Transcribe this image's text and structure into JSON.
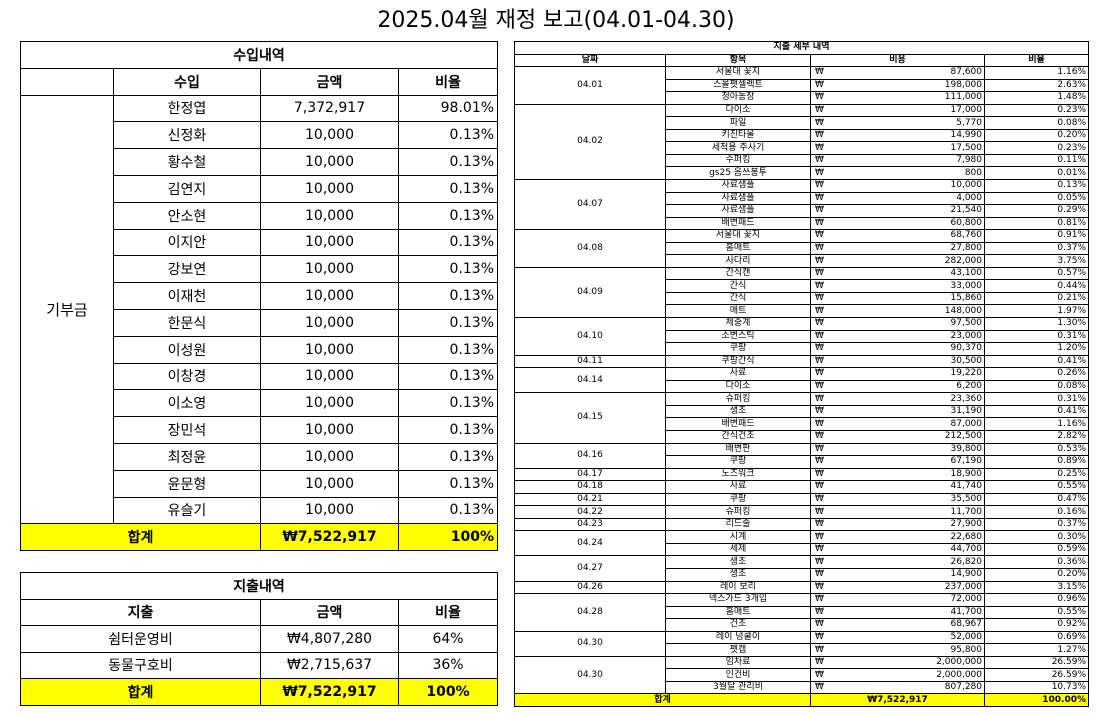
{
  "title": "2025.04월 재정 보고(04.01-04.30)",
  "income": {
    "section_title": "수입내역",
    "headers": [
      "수입",
      "금액",
      "비율"
    ],
    "category": "기부금",
    "rows": [
      {
        "name": "한정엽",
        "amount": "7,372,917",
        "ratio": "98.01%"
      },
      {
        "name": "신정화",
        "amount": "10,000",
        "ratio": "0.13%"
      },
      {
        "name": "황수철",
        "amount": "10,000",
        "ratio": "0.13%"
      },
      {
        "name": "김연지",
        "amount": "10,000",
        "ratio": "0.13%"
      },
      {
        "name": "안소현",
        "amount": "10,000",
        "ratio": "0.13%"
      },
      {
        "name": "이지안",
        "amount": "10,000",
        "ratio": "0.13%"
      },
      {
        "name": "강보연",
        "amount": "10,000",
        "ratio": "0.13%"
      },
      {
        "name": "이재천",
        "amount": "10,000",
        "ratio": "0.13%"
      },
      {
        "name": "한문식",
        "amount": "10,000",
        "ratio": "0.13%"
      },
      {
        "name": "이성원",
        "amount": "10,000",
        "ratio": "0.13%"
      },
      {
        "name": "이창경",
        "amount": "10,000",
        "ratio": "0.13%"
      },
      {
        "name": "이소영",
        "amount": "10,000",
        "ratio": "0.13%"
      },
      {
        "name": "장민석",
        "amount": "10,000",
        "ratio": "0.13%"
      },
      {
        "name": "최정윤",
        "amount": "10,000",
        "ratio": "0.13%"
      },
      {
        "name": "윤문형",
        "amount": "10,000",
        "ratio": "0.13%"
      },
      {
        "name": "유슬기",
        "amount": "10,000",
        "ratio": "0.13%"
      }
    ],
    "total_label": "합계",
    "total_amount": "₩7,522,917",
    "total_ratio": "100%"
  },
  "expense_summary": {
    "section_title": "지출내역",
    "headers": [
      "지출",
      "금액",
      "비율"
    ],
    "rows": [
      {
        "name": "쉼터운영비",
        "amount": "₩4,807,280",
        "ratio": "64%"
      },
      {
        "name": "동물구호비",
        "amount": "₩2,715,637",
        "ratio": "36%"
      }
    ],
    "total_label": "합계",
    "total_amount": "₩7,522,917",
    "total_ratio": "100%"
  },
  "detail": {
    "section_title": "지출 세부 내역",
    "headers": [
      "날짜",
      "항목",
      "비용",
      "비율"
    ],
    "currency": "₩",
    "groups": [
      {
        "date": "04.01",
        "items": [
          [
            "서울대 꽃지",
            "87,600",
            "1.16%"
          ],
          [
            "스몰팻셀렉트",
            "198,000",
            "2.63%"
          ],
          [
            "청아농장",
            "111,000",
            "1.48%"
          ]
        ]
      },
      {
        "date": "04.02",
        "items": [
          [
            "다이소",
            "17,000",
            "0.23%"
          ],
          [
            "파일",
            "5,770",
            "0.08%"
          ],
          [
            "키친타올",
            "14,990",
            "0.20%"
          ],
          [
            "세척용 주사기",
            "17,500",
            "0.23%"
          ],
          [
            "수퍼킹",
            "7,980",
            "0.11%"
          ],
          [
            "gs25 음쓰봉투",
            "800",
            "0.01%"
          ]
        ]
      },
      {
        "date": "04.07",
        "items": [
          [
            "사료샘플",
            "10,000",
            "0.13%"
          ],
          [
            "사료샘플",
            "4,000",
            "0.05%"
          ],
          [
            "사료샘플",
            "21,540",
            "0.29%"
          ],
          [
            "배변패드",
            "60,800",
            "0.81%"
          ]
        ]
      },
      {
        "date": "04.08",
        "items": [
          [
            "서울대 꽃지",
            "68,760",
            "0.91%"
          ],
          [
            "홈매트",
            "27,800",
            "0.37%"
          ],
          [
            "사다리",
            "282,000",
            "3.75%"
          ]
        ]
      },
      {
        "date": "04.09",
        "items": [
          [
            "간식캔",
            "43,100",
            "0.57%"
          ],
          [
            "간식",
            "33,000",
            "0.44%"
          ],
          [
            "간식",
            "15,860",
            "0.21%"
          ],
          [
            "매트",
            "148,000",
            "1.97%"
          ]
        ]
      },
      {
        "date": "04.10",
        "items": [
          [
            "체중계",
            "97,500",
            "1.30%"
          ],
          [
            "소변스틱",
            "23,000",
            "0.31%"
          ],
          [
            "쿠팡",
            "90,370",
            "1.20%"
          ]
        ]
      },
      {
        "date": "04.11",
        "items": [
          [
            "쿠팡간식",
            "30,500",
            "0.41%"
          ]
        ]
      },
      {
        "date": "04.14",
        "items": [
          [
            "사료",
            "19,220",
            "0.26%"
          ],
          [
            "다이소",
            "6,200",
            "0.08%"
          ]
        ]
      },
      {
        "date": "04.15",
        "items": [
          [
            "슈퍼킹",
            "23,360",
            "0.31%"
          ],
          [
            "생초",
            "31,190",
            "0.41%"
          ],
          [
            "배변패드",
            "87,000",
            "1.16%"
          ],
          [
            "간식건초",
            "212,500",
            "2.82%"
          ]
        ]
      },
      {
        "date": "04.16",
        "items": [
          [
            "배변판",
            "39,800",
            "0.53%"
          ],
          [
            "쿠팡",
            "67,190",
            "0.89%"
          ]
        ]
      },
      {
        "date": "04.17",
        "items": [
          [
            "노즈워크",
            "18,900",
            "0.25%"
          ]
        ]
      },
      {
        "date": "04.18",
        "items": [
          [
            "사료",
            "41,740",
            "0.55%"
          ]
        ]
      },
      {
        "date": "04.21",
        "items": [
          [
            "쿠팡",
            "35,500",
            "0.47%"
          ]
        ]
      },
      {
        "date": "04.22",
        "items": [
          [
            "슈퍼킹",
            "11,700",
            "0.16%"
          ]
        ]
      },
      {
        "date": "04.23",
        "items": [
          [
            "리드줄",
            "27,900",
            "0.37%"
          ]
        ]
      },
      {
        "date": "04.24",
        "items": [
          [
            "시계",
            "22,680",
            "0.30%"
          ],
          [
            "세제",
            "44,700",
            "0.59%"
          ]
        ]
      },
      {
        "date": "04.27",
        "items": [
          [
            "생초",
            "26,820",
            "0.36%"
          ],
          [
            "생초",
            "14,900",
            "0.20%"
          ]
        ]
      },
      {
        "date": "04.26",
        "items": [
          [
            "레이 보리",
            "237,000",
            "3.15%"
          ]
        ]
      },
      {
        "date": "04.28",
        "items": [
          [
            "넥스가드 3개입",
            "72,000",
            "0.96%"
          ],
          [
            "홈매트",
            "41,700",
            "0.55%"
          ],
          [
            "건초",
            "68,967",
            "0.92%"
          ]
        ]
      },
      {
        "date": "04.30",
        "items": [
          [
            "레이 넝쿨이",
            "52,000",
            "0.69%"
          ],
          [
            "펫캠",
            "95,800",
            "1.27%"
          ]
        ]
      },
      {
        "date": "04.30",
        "items": [
          [
            "임차료",
            "2,000,000",
            "26.59%"
          ],
          [
            "인건비",
            "2,000,000",
            "26.59%"
          ],
          [
            "3월달 관리비",
            "807,280",
            "10.73%"
          ]
        ]
      }
    ],
    "total_label": "합계",
    "total_amount": "₩7,522,917",
    "total_ratio": "100.00%"
  }
}
